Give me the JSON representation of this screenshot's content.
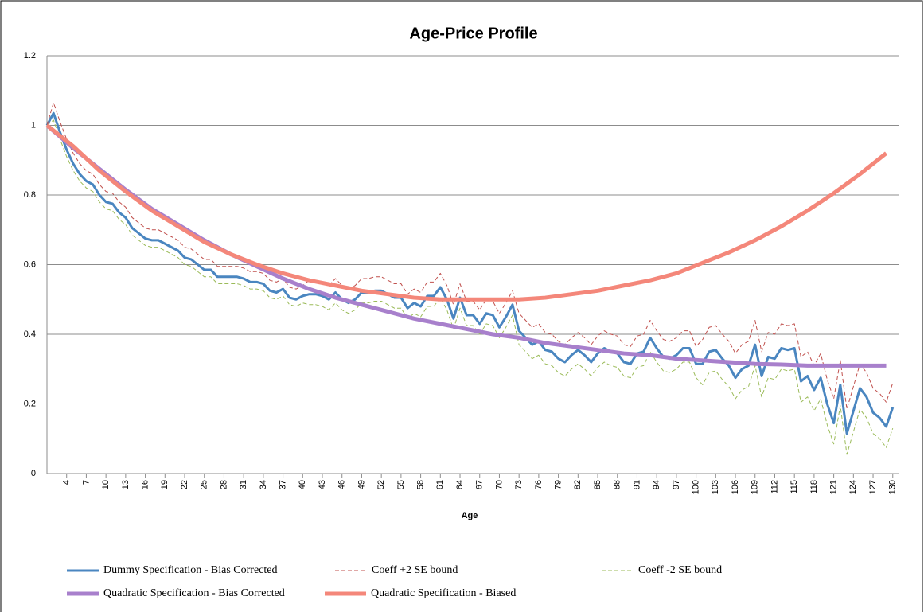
{
  "chart_data": {
    "type": "line",
    "title": "Age-Price Profile",
    "x_label": "Age",
    "x": [
      1,
      2,
      3,
      4,
      5,
      6,
      7,
      8,
      9,
      10,
      11,
      12,
      13,
      14,
      15,
      16,
      17,
      18,
      19,
      20,
      21,
      22,
      23,
      24,
      25,
      26,
      27,
      28,
      29,
      30,
      31,
      32,
      33,
      34,
      35,
      36,
      37,
      38,
      39,
      40,
      41,
      42,
      43,
      44,
      45,
      46,
      47,
      48,
      49,
      50,
      51,
      52,
      53,
      54,
      55,
      56,
      57,
      58,
      59,
      60,
      61,
      62,
      63,
      64,
      65,
      66,
      67,
      68,
      69,
      70,
      71,
      72,
      73,
      74,
      75,
      76,
      77,
      78,
      79,
      80,
      81,
      82,
      83,
      84,
      85,
      86,
      87,
      88,
      89,
      90,
      91,
      92,
      93,
      94,
      95,
      96,
      97,
      98,
      99,
      100,
      101,
      102,
      103,
      104,
      105,
      106,
      107,
      108,
      109,
      110,
      111,
      112,
      113,
      114,
      115,
      116,
      117,
      118,
      119,
      120,
      121,
      122,
      123,
      124,
      125,
      126,
      127,
      128,
      129,
      130
    ],
    "xlim": [
      1,
      131
    ],
    "xticks": [
      4,
      7,
      10,
      13,
      16,
      19,
      22,
      25,
      28,
      31,
      34,
      37,
      40,
      43,
      46,
      49,
      52,
      55,
      58,
      61,
      64,
      67,
      70,
      73,
      76,
      79,
      82,
      85,
      88,
      91,
      94,
      97,
      100,
      103,
      106,
      109,
      112,
      115,
      118,
      121,
      124,
      127,
      130
    ],
    "ylim": [
      0,
      1.2
    ],
    "yticks": [
      0,
      0.2,
      0.4,
      0.6,
      0.8,
      1,
      1.2
    ],
    "grid": true,
    "series": [
      {
        "name": "Dummy Specification - Bias Corrected",
        "color": "#4a86c0",
        "style": "solid",
        "width": 3,
        "values": [
          1.0,
          1.035,
          0.98,
          0.93,
          0.89,
          0.86,
          0.84,
          0.83,
          0.8,
          0.78,
          0.775,
          0.75,
          0.735,
          0.705,
          0.69,
          0.675,
          0.67,
          0.67,
          0.66,
          0.65,
          0.64,
          0.62,
          0.615,
          0.6,
          0.585,
          0.585,
          0.565,
          0.565,
          0.565,
          0.565,
          0.56,
          0.55,
          0.55,
          0.545,
          0.525,
          0.52,
          0.53,
          0.505,
          0.5,
          0.51,
          0.515,
          0.515,
          0.51,
          0.5,
          0.52,
          0.5,
          0.49,
          0.5,
          0.52,
          0.52,
          0.525,
          0.525,
          0.515,
          0.505,
          0.505,
          0.475,
          0.49,
          0.48,
          0.51,
          0.51,
          0.535,
          0.5,
          0.445,
          0.505,
          0.455,
          0.455,
          0.43,
          0.46,
          0.455,
          0.42,
          0.45,
          0.485,
          0.41,
          0.39,
          0.37,
          0.38,
          0.355,
          0.35,
          0.33,
          0.32,
          0.34,
          0.355,
          0.34,
          0.32,
          0.345,
          0.36,
          0.35,
          0.345,
          0.32,
          0.315,
          0.345,
          0.35,
          0.39,
          0.36,
          0.335,
          0.33,
          0.34,
          0.36,
          0.36,
          0.315,
          0.315,
          0.35,
          0.355,
          0.33,
          0.31,
          0.275,
          0.3,
          0.31,
          0.37,
          0.28,
          0.335,
          0.33,
          0.36,
          0.355,
          0.36,
          0.265,
          0.28,
          0.24,
          0.275,
          0.2,
          0.145,
          0.255,
          0.115,
          0.18,
          0.245,
          0.22,
          0.175,
          0.16,
          0.135,
          0.19
        ]
      },
      {
        "name": "Coeff +2 SE bound",
        "color": "#c0504d",
        "style": "dashed",
        "width": 1,
        "values": [
          1.0,
          1.065,
          1.01,
          0.96,
          0.92,
          0.89,
          0.87,
          0.86,
          0.83,
          0.81,
          0.805,
          0.78,
          0.765,
          0.735,
          0.72,
          0.705,
          0.7,
          0.7,
          0.69,
          0.68,
          0.67,
          0.65,
          0.645,
          0.63,
          0.615,
          0.615,
          0.595,
          0.595,
          0.595,
          0.595,
          0.59,
          0.58,
          0.58,
          0.575,
          0.555,
          0.55,
          0.56,
          0.535,
          0.53,
          0.54,
          0.555,
          0.555,
          0.55,
          0.54,
          0.56,
          0.54,
          0.53,
          0.54,
          0.56,
          0.56,
          0.565,
          0.565,
          0.555,
          0.545,
          0.545,
          0.515,
          0.53,
          0.52,
          0.55,
          0.55,
          0.575,
          0.54,
          0.485,
          0.545,
          0.495,
          0.495,
          0.47,
          0.5,
          0.495,
          0.46,
          0.49,
          0.525,
          0.46,
          0.44,
          0.42,
          0.43,
          0.405,
          0.4,
          0.38,
          0.37,
          0.39,
          0.405,
          0.39,
          0.37,
          0.395,
          0.41,
          0.4,
          0.395,
          0.37,
          0.365,
          0.395,
          0.4,
          0.44,
          0.41,
          0.385,
          0.38,
          0.39,
          0.41,
          0.41,
          0.365,
          0.385,
          0.42,
          0.425,
          0.4,
          0.38,
          0.345,
          0.37,
          0.38,
          0.44,
          0.35,
          0.405,
          0.4,
          0.43,
          0.425,
          0.43,
          0.335,
          0.35,
          0.31,
          0.345,
          0.27,
          0.215,
          0.325,
          0.185,
          0.25,
          0.315,
          0.29,
          0.245,
          0.23,
          0.205,
          0.26
        ]
      },
      {
        "name": "Coeff -2 SE bound",
        "color": "#9bbb59",
        "style": "dashed",
        "width": 1,
        "values": [
          1.0,
          1.015,
          0.96,
          0.91,
          0.87,
          0.84,
          0.82,
          0.81,
          0.78,
          0.76,
          0.755,
          0.73,
          0.715,
          0.685,
          0.67,
          0.655,
          0.65,
          0.65,
          0.64,
          0.63,
          0.62,
          0.6,
          0.595,
          0.58,
          0.565,
          0.565,
          0.545,
          0.545,
          0.545,
          0.545,
          0.54,
          0.53,
          0.53,
          0.525,
          0.505,
          0.5,
          0.51,
          0.485,
          0.48,
          0.49,
          0.485,
          0.485,
          0.48,
          0.47,
          0.49,
          0.47,
          0.46,
          0.47,
          0.49,
          0.49,
          0.495,
          0.495,
          0.485,
          0.475,
          0.475,
          0.445,
          0.46,
          0.45,
          0.48,
          0.48,
          0.505,
          0.47,
          0.415,
          0.475,
          0.425,
          0.425,
          0.4,
          0.43,
          0.425,
          0.39,
          0.42,
          0.455,
          0.37,
          0.35,
          0.33,
          0.34,
          0.315,
          0.31,
          0.29,
          0.28,
          0.3,
          0.315,
          0.3,
          0.28,
          0.305,
          0.32,
          0.31,
          0.305,
          0.28,
          0.275,
          0.305,
          0.31,
          0.35,
          0.32,
          0.295,
          0.29,
          0.3,
          0.32,
          0.32,
          0.275,
          0.255,
          0.29,
          0.295,
          0.27,
          0.25,
          0.215,
          0.24,
          0.25,
          0.31,
          0.22,
          0.275,
          0.27,
          0.3,
          0.295,
          0.3,
          0.205,
          0.22,
          0.18,
          0.215,
          0.14,
          0.085,
          0.195,
          0.055,
          0.12,
          0.185,
          0.16,
          0.115,
          0.1,
          0.075,
          0.13
        ]
      },
      {
        "name": "Quadratic Specification - Bias Corrected",
        "color": "#a880cc",
        "style": "solid",
        "width": 5,
        "x": [
          1,
          5,
          9,
          13,
          17,
          21,
          25,
          29,
          33,
          37,
          41,
          45,
          49,
          53,
          57,
          61,
          65,
          69,
          73,
          77,
          81,
          85,
          89,
          93,
          97,
          101,
          105,
          109,
          113,
          117,
          121,
          125,
          129
        ],
        "values": [
          1.0,
          0.935,
          0.875,
          0.815,
          0.76,
          0.715,
          0.67,
          0.63,
          0.595,
          0.56,
          0.53,
          0.505,
          0.485,
          0.465,
          0.445,
          0.43,
          0.415,
          0.4,
          0.39,
          0.375,
          0.365,
          0.355,
          0.345,
          0.34,
          0.33,
          0.325,
          0.32,
          0.315,
          0.313,
          0.31,
          0.31,
          0.31,
          0.31
        ]
      },
      {
        "name": "Quadratic Specification - Biased",
        "color": "#f4877a",
        "style": "solid",
        "width": 5,
        "x": [
          1,
          5,
          9,
          13,
          17,
          21,
          25,
          29,
          33,
          37,
          41,
          45,
          49,
          53,
          57,
          61,
          65,
          69,
          73,
          77,
          81,
          85,
          89,
          93,
          97,
          101,
          105,
          109,
          113,
          117,
          121,
          125,
          129
        ],
        "values": [
          1.0,
          0.94,
          0.87,
          0.81,
          0.755,
          0.71,
          0.665,
          0.63,
          0.6,
          0.575,
          0.555,
          0.54,
          0.525,
          0.515,
          0.505,
          0.5,
          0.5,
          0.5,
          0.5,
          0.505,
          0.515,
          0.525,
          0.54,
          0.555,
          0.575,
          0.605,
          0.635,
          0.67,
          0.71,
          0.755,
          0.805,
          0.86,
          0.92
        ]
      }
    ]
  }
}
